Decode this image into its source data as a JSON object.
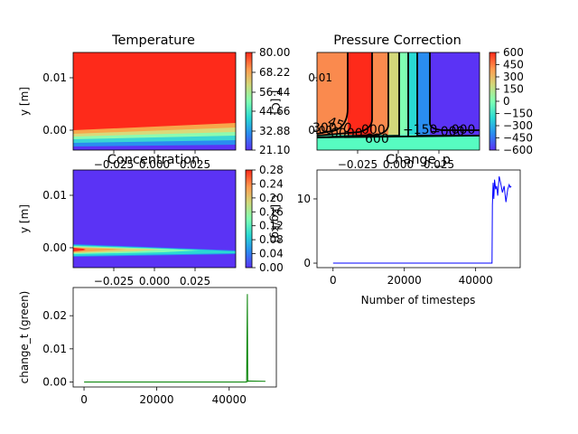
{
  "chart_data": [
    {
      "type": "heatmap",
      "title": "Temperature",
      "ylabel": "y [m]",
      "xtick_labels": [
        "−0.025",
        "0.000",
        "0.025"
      ],
      "ytick_labels": [
        "0.01",
        "0.00"
      ],
      "colorbar_label": "T [C]",
      "colorbar_ticks": [
        "80.00",
        "68.22",
        "56.44",
        "44.66",
        "32.88",
        "21.10"
      ],
      "colormap": "rainbow"
    },
    {
      "type": "heatmap",
      "title": "Pressure Correction",
      "ytick_labels": [
        "0.01",
        "0.00"
      ],
      "xtick_labels": [
        "−0.025",
        "0.000",
        "0.025"
      ],
      "colorbar_ticks": [
        "600",
        "450",
        "300",
        "150",
        "0",
        "−150",
        "−300",
        "−450",
        "−600"
      ],
      "contour_labels": [
        "450",
        "300",
        "000",
        "0000",
        "600",
        "−150",
        "−000",
        "−000"
      ],
      "colormap": "rainbow"
    },
    {
      "type": "heatmap",
      "title": "Concentration",
      "ylabel": "y [m]",
      "xtick_labels": [
        "−0.025",
        "0.000",
        "0.025"
      ],
      "ytick_labels": [
        "0.01",
        "0.00"
      ],
      "colorbar_ticks": [
        "0.28",
        "0.24",
        "0.20",
        "0.16",
        "0.12",
        "0.08",
        "0.04",
        "0.00"
      ],
      "colorbar_label": "c [kg/kg]",
      "colormap": "rainbow"
    },
    {
      "type": "line",
      "title": "Change_p",
      "xlabel": "Number of timesteps",
      "xlim": [
        -4500,
        52500
      ],
      "ylim": [
        -0.7,
        14.5
      ],
      "xticks": [
        0,
        20000,
        40000
      ],
      "yticks": [
        0,
        10
      ],
      "series": [
        {
          "name": "",
          "color": "#0000ff",
          "x": [
            0,
            44600,
            44700,
            44900,
            45100,
            45300,
            45600,
            45900,
            46200,
            46600,
            47000,
            47500,
            48000,
            48500,
            49000,
            49400,
            49700,
            50000
          ],
          "y": [
            0,
            0,
            9,
            12.5,
            10,
            13,
            11.5,
            12,
            10.5,
            13.5,
            12.5,
            11,
            12,
            9.5,
            11.5,
            12.2,
            11.8,
            12
          ]
        }
      ]
    },
    {
      "type": "line",
      "ylabel": "change_t (green)",
      "xlim": [
        -3000,
        53000
      ],
      "ylim": [
        -0.0015,
        0.0285
      ],
      "xticks": [
        0,
        20000,
        40000
      ],
      "yticks": [
        0.0,
        0.01,
        0.02
      ],
      "series": [
        {
          "name": "",
          "color": "#008000",
          "x": [
            0,
            44800,
            45000,
            45100,
            45300,
            50000
          ],
          "y": [
            0,
            0,
            0.0265,
            0.0002,
            0.0003,
            0.0002
          ]
        }
      ]
    }
  ]
}
